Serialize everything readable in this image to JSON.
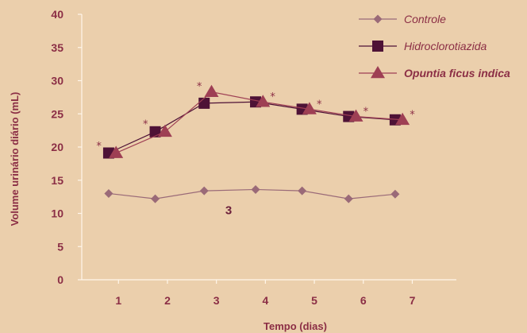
{
  "chart_data": {
    "type": "line",
    "title": "",
    "xlabel": "Tempo (dias)",
    "ylabel": "Volume urinário diário (mL)",
    "x": [
      1,
      2,
      3,
      4,
      5,
      6,
      7
    ],
    "xlim": [
      0.25,
      7.9
    ],
    "ylim": [
      0,
      40
    ],
    "yticks": [
      0,
      5,
      10,
      15,
      20,
      25,
      30,
      35,
      40
    ],
    "series": [
      {
        "name": "Controle",
        "marker": "diamond",
        "color": "#9a6a78",
        "x": [
          0.8,
          1.75,
          2.75,
          3.8,
          4.75,
          5.7,
          6.65
        ],
        "values": [
          13.0,
          12.2,
          13.4,
          13.6,
          13.4,
          12.2,
          12.9
        ]
      },
      {
        "name": "Hidroclorotiazida",
        "marker": "square",
        "color": "#4e1236",
        "x": [
          0.8,
          1.75,
          2.75,
          3.8,
          4.75,
          5.7,
          6.65
        ],
        "values": [
          19.1,
          22.3,
          26.6,
          26.8,
          25.7,
          24.6,
          24.1
        ]
      },
      {
        "name": "Opuntia ficus indica",
        "marker": "triangle",
        "color": "#9e3f54",
        "x": [
          0.95,
          1.95,
          2.9,
          3.95,
          4.9,
          5.85,
          6.8
        ],
        "values": [
          19.1,
          22.3,
          28.3,
          26.8,
          25.7,
          24.6,
          24.1
        ]
      }
    ],
    "significance_marks": [
      {
        "x": 0.6,
        "y": 20.6,
        "text": "*"
      },
      {
        "x": 1.55,
        "y": 23.9,
        "text": "*"
      },
      {
        "x": 2.65,
        "y": 29.6,
        "text": "*"
      },
      {
        "x": 4.15,
        "y": 28.0,
        "text": "*"
      },
      {
        "x": 5.1,
        "y": 26.9,
        "text": "*"
      },
      {
        "x": 6.05,
        "y": 25.8,
        "text": "*"
      },
      {
        "x": 7.0,
        "y": 25.3,
        "text": "*"
      }
    ],
    "annotations": [
      {
        "text": "3",
        "x": 3.25,
        "y": 10.5
      }
    ],
    "legend": {
      "placement": "top-right",
      "bold_entries": [
        "Opuntia ficus indica"
      ]
    },
    "grid": false
  }
}
